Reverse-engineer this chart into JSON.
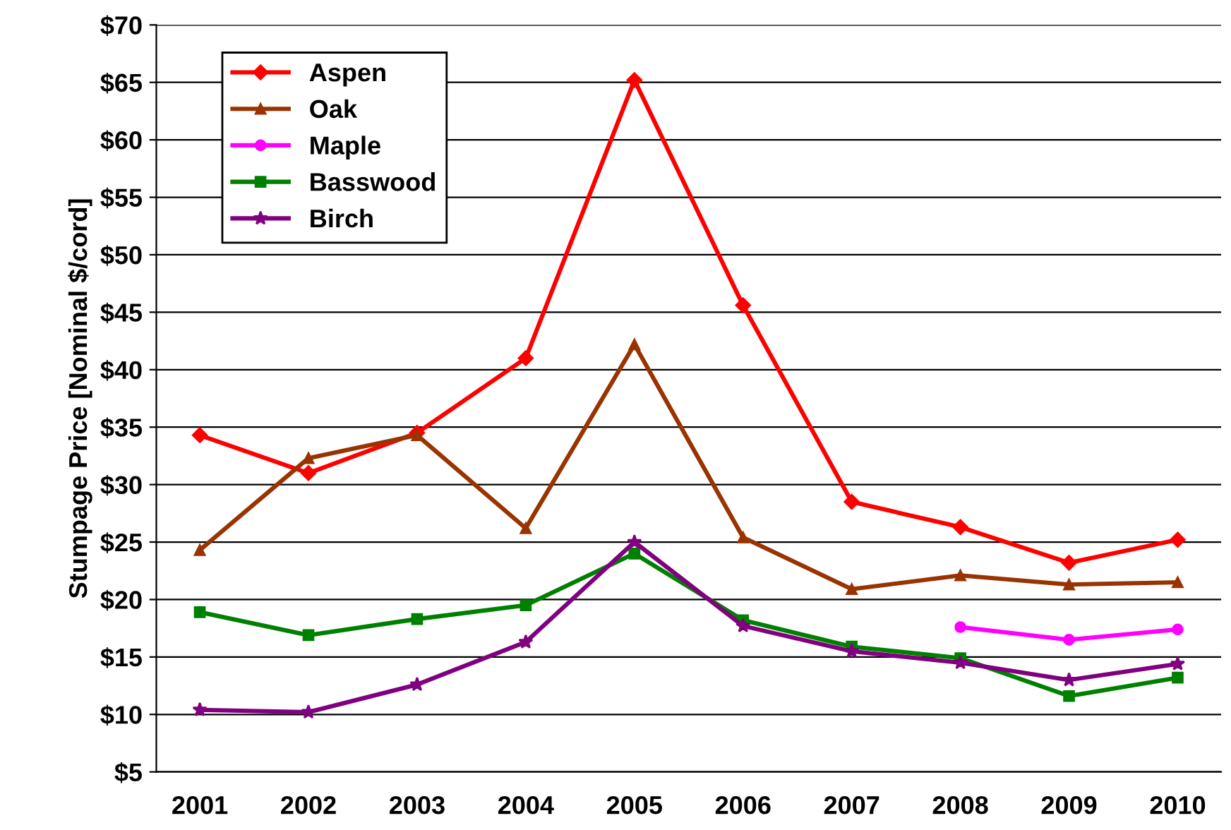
{
  "chart_data": {
    "type": "line",
    "ylabel": "Stumpage Price [Nominal $/cord]",
    "categories": [
      "2001",
      "2002",
      "2003",
      "2004",
      "2005",
      "2006",
      "2007",
      "2008",
      "2009",
      "2010"
    ],
    "series": [
      {
        "name": "Aspen",
        "color": "#ff0000",
        "marker": "diamond",
        "values": [
          34.3,
          31,
          34.5,
          41,
          65.2,
          45.6,
          28.5,
          26.3,
          23.2,
          25.2
        ]
      },
      {
        "name": "Oak",
        "color": "#993300",
        "marker": "triangle",
        "values": [
          24.3,
          32.3,
          34.3,
          26.2,
          42.2,
          25.4,
          20.9,
          22.1,
          21.3,
          21.5
        ]
      },
      {
        "name": "Maple",
        "color": "#ff00ff",
        "marker": "circle",
        "values": [
          null,
          null,
          null,
          null,
          null,
          null,
          null,
          17.6,
          16.5,
          17.4
        ]
      },
      {
        "name": "Basswood",
        "color": "#008000",
        "marker": "square",
        "values": [
          18.9,
          16.9,
          18.3,
          19.5,
          24,
          18.2,
          15.9,
          14.9,
          11.6,
          13.2
        ]
      },
      {
        "name": "Birch",
        "color": "#800080",
        "marker": "star",
        "values": [
          10.4,
          10.2,
          12.6,
          16.3,
          25,
          17.7,
          15.5,
          14.5,
          13.0,
          14.4
        ]
      }
    ],
    "ylim": [
      5,
      70
    ],
    "yticks": [
      {
        "value": 5,
        "label": "$5"
      },
      {
        "value": 10,
        "label": "$10"
      },
      {
        "value": 15,
        "label": "$15"
      },
      {
        "value": 20,
        "label": "$20"
      },
      {
        "value": 25,
        "label": "$25"
      },
      {
        "value": 30,
        "label": "$30"
      },
      {
        "value": 35,
        "label": "$35"
      },
      {
        "value": 40,
        "label": "$40"
      },
      {
        "value": 45,
        "label": "$45"
      },
      {
        "value": 50,
        "label": "$50"
      },
      {
        "value": 55,
        "label": "$55"
      },
      {
        "value": 60,
        "label": "$60"
      },
      {
        "value": 65,
        "label": "$65"
      },
      {
        "value": 70,
        "label": "$70"
      }
    ],
    "grid": "y",
    "legend": "top left",
    "line_style": "solid"
  }
}
